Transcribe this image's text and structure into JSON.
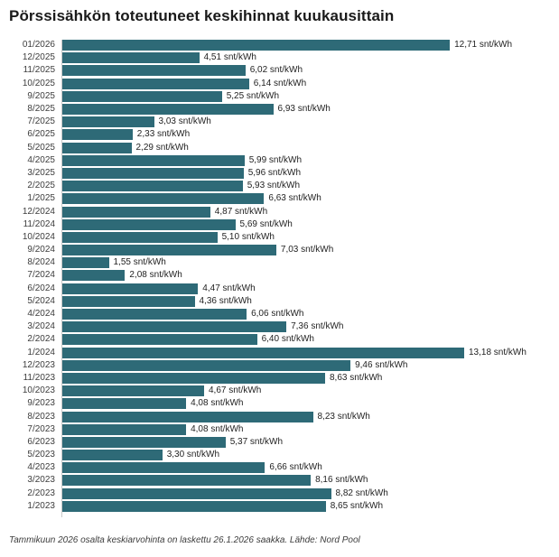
{
  "title": "Pörssisähkön toteutuneet keskihinnat kuukausittain",
  "footnote": "Tammikuun 2026 osalta keskiarvohinta on laskettu 26.1.2026 saakka. Lähde: Nord Pool",
  "colors": {
    "bar": "#2e6a77",
    "axis_line": "#c9c9c9",
    "title_text": "#1a1a1a",
    "label_text": "#3d3d3d",
    "value_text": "#1f1f1f",
    "background": "#ffffff"
  },
  "chart_data": {
    "type": "bar",
    "orientation": "horizontal",
    "title": "Pörssisähkön toteutuneet keskihinnat kuukausittain",
    "xlabel": "",
    "ylabel": "",
    "unit": "snt/kWh",
    "xlim": [
      0,
      13.5
    ],
    "grid": false,
    "legend": false,
    "source_note": "Tammikuun 2026 osalta keskiarvohinta on laskettu 26.1.2026 saakka. Lähde: Nord Pool",
    "max_value": 13.18,
    "categories": [
      "01/2026",
      "12/2025",
      "11/2025",
      "10/2025",
      "9/2025",
      "8/2025",
      "7/2025",
      "6/2025",
      "5/2025",
      "4/2025",
      "3/2025",
      "2/2025",
      "1/2025",
      "12/2024",
      "11/2024",
      "10/2024",
      "9/2024",
      "8/2024",
      "7/2024",
      "6/2024",
      "5/2024",
      "4/2024",
      "3/2024",
      "2/2024",
      "1/2024",
      "12/2023",
      "11/2023",
      "10/2023",
      "9/2023",
      "8/2023",
      "7/2023",
      "6/2023",
      "5/2023",
      "4/2023",
      "3/2023",
      "2/2023",
      "1/2023"
    ],
    "values": [
      12.71,
      4.51,
      6.02,
      6.14,
      5.25,
      6.93,
      3.03,
      2.33,
      2.29,
      5.99,
      5.96,
      5.93,
      6.63,
      4.87,
      5.69,
      5.1,
      7.03,
      1.55,
      2.08,
      4.47,
      4.36,
      6.06,
      7.36,
      6.4,
      13.18,
      9.46,
      8.63,
      4.67,
      4.08,
      8.23,
      4.08,
      5.37,
      3.3,
      6.66,
      8.16,
      8.82,
      8.65
    ],
    "rows": [
      {
        "label": "01/2026",
        "value": 12.71,
        "display": "12,71 snt/kWh"
      },
      {
        "label": "12/2025",
        "value": 4.51,
        "display": "4,51 snt/kWh"
      },
      {
        "label": "11/2025",
        "value": 6.02,
        "display": "6,02 snt/kWh"
      },
      {
        "label": "10/2025",
        "value": 6.14,
        "display": "6,14 snt/kWh"
      },
      {
        "label": "9/2025",
        "value": 5.25,
        "display": "5,25 snt/kWh"
      },
      {
        "label": "8/2025",
        "value": 6.93,
        "display": "6,93 snt/kWh"
      },
      {
        "label": "7/2025",
        "value": 3.03,
        "display": "3,03 snt/kWh"
      },
      {
        "label": "6/2025",
        "value": 2.33,
        "display": "2,33 snt/kWh"
      },
      {
        "label": "5/2025",
        "value": 2.29,
        "display": "2,29 snt/kWh"
      },
      {
        "label": "4/2025",
        "value": 5.99,
        "display": "5,99 snt/kWh"
      },
      {
        "label": "3/2025",
        "value": 5.96,
        "display": "5,96 snt/kWh"
      },
      {
        "label": "2/2025",
        "value": 5.93,
        "display": "5,93 snt/kWh"
      },
      {
        "label": "1/2025",
        "value": 6.63,
        "display": "6,63 snt/kWh"
      },
      {
        "label": "12/2024",
        "value": 4.87,
        "display": "4,87 snt/kWh"
      },
      {
        "label": "11/2024",
        "value": 5.69,
        "display": "5,69 snt/kWh"
      },
      {
        "label": "10/2024",
        "value": 5.1,
        "display": "5,10 snt/kWh"
      },
      {
        "label": "9/2024",
        "value": 7.03,
        "display": "7,03 snt/kWh"
      },
      {
        "label": "8/2024",
        "value": 1.55,
        "display": "1,55 snt/kWh"
      },
      {
        "label": "7/2024",
        "value": 2.08,
        "display": "2,08 snt/kWh"
      },
      {
        "label": "6/2024",
        "value": 4.47,
        "display": "4,47 snt/kWh"
      },
      {
        "label": "5/2024",
        "value": 4.36,
        "display": "4,36 snt/kWh"
      },
      {
        "label": "4/2024",
        "value": 6.06,
        "display": "6,06 snt/kWh"
      },
      {
        "label": "3/2024",
        "value": 7.36,
        "display": "7,36 snt/kWh"
      },
      {
        "label": "2/2024",
        "value": 6.4,
        "display": "6,40 snt/kWh"
      },
      {
        "label": "1/2024",
        "value": 13.18,
        "display": "13,18 snt/kWh"
      },
      {
        "label": "12/2023",
        "value": 9.46,
        "display": "9,46 snt/kWh"
      },
      {
        "label": "11/2023",
        "value": 8.63,
        "display": "8,63 snt/kWh"
      },
      {
        "label": "10/2023",
        "value": 4.67,
        "display": "4,67 snt/kWh"
      },
      {
        "label": "9/2023",
        "value": 4.08,
        "display": "4,08 snt/kWh"
      },
      {
        "label": "8/2023",
        "value": 8.23,
        "display": "8,23 snt/kWh"
      },
      {
        "label": "7/2023",
        "value": 4.08,
        "display": "4,08 snt/kWh"
      },
      {
        "label": "6/2023",
        "value": 5.37,
        "display": "5,37 snt/kWh"
      },
      {
        "label": "5/2023",
        "value": 3.3,
        "display": "3,30 snt/kWh"
      },
      {
        "label": "4/2023",
        "value": 6.66,
        "display": "6,66 snt/kWh"
      },
      {
        "label": "3/2023",
        "value": 8.16,
        "display": "8,16 snt/kWh"
      },
      {
        "label": "2/2023",
        "value": 8.82,
        "display": "8,82 snt/kWh"
      },
      {
        "label": "1/2023",
        "value": 8.65,
        "display": "8,65 snt/kWh"
      }
    ]
  }
}
